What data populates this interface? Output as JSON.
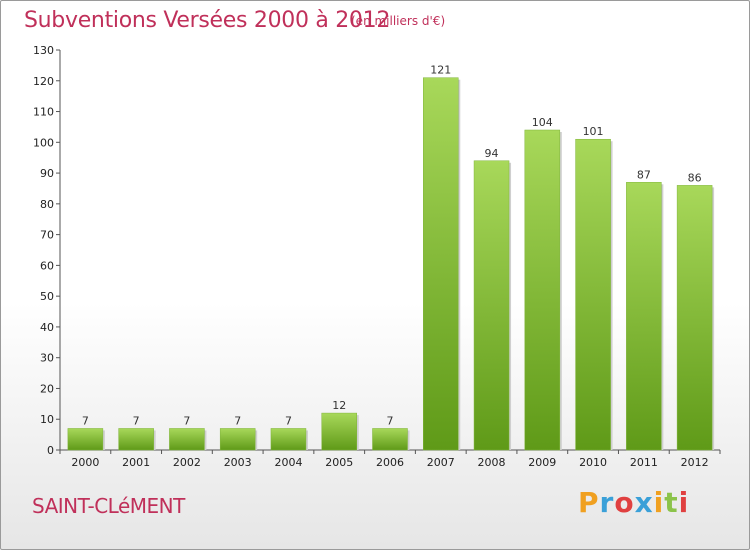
{
  "header": {
    "title": "Subventions Versées 2000 à 2012",
    "subtitle": "(en milliers d'€)"
  },
  "footer": {
    "commune": "SAINT-CLéMENT",
    "logo_letters": [
      {
        "ch": "P",
        "color": "#f0a020"
      },
      {
        "ch": "r",
        "color": "#3aa0d8"
      },
      {
        "ch": "o",
        "color": "#e04040"
      },
      {
        "ch": "x",
        "color": "#3aa0d8"
      },
      {
        "ch": "i",
        "color": "#f0a020"
      },
      {
        "ch": "t",
        "color": "#8bc34a"
      },
      {
        "ch": "i",
        "color": "#e04040"
      }
    ]
  },
  "chart_data": {
    "type": "bar",
    "title": "Subventions Versées 2000 à 2012",
    "subtitle": "(en milliers d'€)",
    "categories": [
      "2000",
      "2001",
      "2002",
      "2003",
      "2004",
      "2005",
      "2006",
      "2007",
      "2008",
      "2009",
      "2010",
      "2011",
      "2012"
    ],
    "values": [
      7,
      7,
      7,
      7,
      7,
      12,
      7,
      121,
      94,
      104,
      101,
      87,
      86
    ],
    "ylim": [
      0,
      130
    ],
    "yticks": [
      0,
      10,
      20,
      30,
      40,
      50,
      60,
      70,
      80,
      90,
      100,
      110,
      120,
      130
    ],
    "grid": false,
    "bar_color_top": "#a8d85a",
    "bar_color_bottom": "#5f9a18"
  }
}
